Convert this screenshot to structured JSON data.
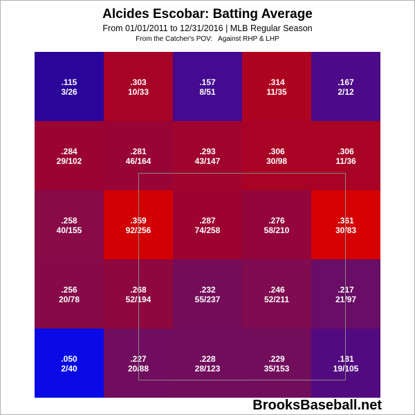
{
  "header": {
    "title": "Alcides Escobar: Batting Average",
    "subtitle": "From 01/01/2011 to 12/31/2016 | MLB Regular Season",
    "subtitle2": "From the Catcher's POV:   Against RHP & LHP"
  },
  "watermark": "BrooksBaseball.net",
  "chart_data": {
    "type": "heatmap",
    "title": "Alcides Escobar: Batting Average",
    "rows": 5,
    "cols": 5,
    "cells": [
      [
        {
          "avg": ".115",
          "hits_ab": "3/26",
          "color": "#2b0599"
        },
        {
          "avg": ".303",
          "hits_ab": "10/33",
          "color": "#a60326"
        },
        {
          "avg": ".157",
          "hits_ab": "8/51",
          "color": "#440a8f"
        },
        {
          "avg": ".314",
          "hits_ab": "11/35",
          "color": "#ae0320"
        },
        {
          "avg": ".167",
          "hits_ab": "2/12",
          "color": "#4c0a88"
        }
      ],
      [
        {
          "avg": ".284",
          "hits_ab": "29/102",
          "color": "#9b0334"
        },
        {
          "avg": ".281",
          "hits_ab": "46/164",
          "color": "#980435"
        },
        {
          "avg": ".293",
          "hits_ab": "43/147",
          "color": "#a0032d"
        },
        {
          "avg": ".306",
          "hits_ab": "30/98",
          "color": "#a80325"
        },
        {
          "avg": ".306",
          "hits_ab": "11/36",
          "color": "#a80325"
        }
      ],
      [
        {
          "avg": ".258",
          "hits_ab": "40/155",
          "color": "#880a47"
        },
        {
          "avg": ".359",
          "hits_ab": "92/256",
          "color": "#d10003"
        },
        {
          "avg": ".287",
          "hits_ab": "74/258",
          "color": "#9c0331"
        },
        {
          "avg": ".276",
          "hits_ab": "58/210",
          "color": "#92063c"
        },
        {
          "avg": ".361",
          "hits_ab": "30/83",
          "color": "#d40002"
        }
      ],
      [
        {
          "avg": ".256",
          "hits_ab": "20/78",
          "color": "#860a48"
        },
        {
          "avg": ".268",
          "hits_ab": "52/194",
          "color": "#8e073f"
        },
        {
          "avg": ".232",
          "hits_ab": "55/237",
          "color": "#730d5a"
        },
        {
          "avg": ".246",
          "hits_ab": "52/211",
          "color": "#7f0b50"
        },
        {
          "avg": ".217",
          "hits_ab": "21/97",
          "color": "#690d66"
        }
      ],
      [
        {
          "avg": ".050",
          "hits_ab": "2/40",
          "color": "#0a0ae6"
        },
        {
          "avg": ".227",
          "hits_ab": "20/88",
          "color": "#700d5e"
        },
        {
          "avg": ".228",
          "hits_ab": "28/123",
          "color": "#710d5d"
        },
        {
          "avg": ".229",
          "hits_ab": "35/153",
          "color": "#720d5c"
        },
        {
          "avg": ".181",
          "hits_ab": "19/105",
          "color": "#520a80"
        }
      ]
    ]
  }
}
